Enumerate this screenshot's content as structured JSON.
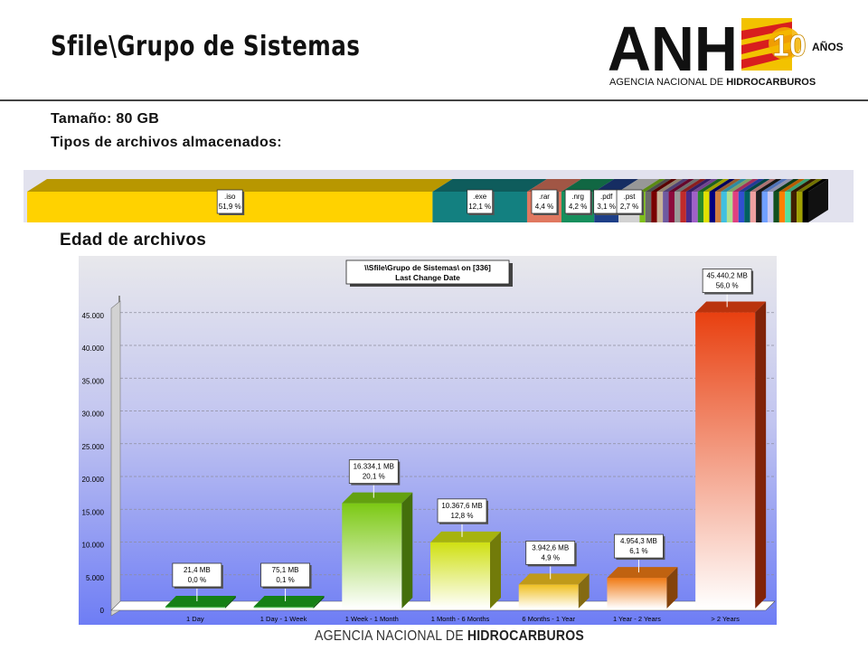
{
  "header": {
    "title": "Sfile\\Grupo de Sistemas",
    "logo": {
      "letters": "ANH",
      "badge": "10",
      "badge_suffix": "AÑOS",
      "subtitle_plain": "AGENCIA NACIONAL DE ",
      "subtitle_bold": "HIDROCARBUROS"
    }
  },
  "info": {
    "size_line": "Tamaño: 80 GB",
    "types_line": "Tipos de archivos almacenados:"
  },
  "file_types": {
    "segments": [
      {
        "ext": ".iso",
        "pct": 51.9,
        "label": "51,9 %",
        "color": "#ffd200"
      },
      {
        "ext": ".exe",
        "pct": 12.1,
        "label": "12,1 %",
        "color": "#138080"
      },
      {
        "ext": ".rar",
        "pct": 4.4,
        "label": "4,4 %",
        "color": "#e07860"
      },
      {
        "ext": ".nrg",
        "pct": 4.2,
        "label": "4,2 %",
        "color": "#178f5d"
      },
      {
        "ext": ".pdf",
        "pct": 3.1,
        "label": "3,1 %",
        "color": "#1e3f88"
      },
      {
        "ext": ".pst",
        "pct": 2.7,
        "label": "2,7 %",
        "color": "#d2d2d2"
      }
    ],
    "other_colors": [
      "#7fc01a",
      "#6a6a6a",
      "#7a0000",
      "#c8b49a",
      "#6e5aa0",
      "#8c0a3c",
      "#9a9a9a",
      "#c02a2a",
      "#4a2a8a",
      "#a060c8",
      "#2a8a2a",
      "#e0e000",
      "#000080",
      "#d08040",
      "#40c0e0",
      "#b0e090",
      "#e04080",
      "#3050d0",
      "#006060",
      "#f0a0a0",
      "#202020",
      "#70a0ff",
      "#c8c8f0",
      "#105020",
      "#ff8000",
      "#50e0a0",
      "#402000",
      "#a0a000",
      "#000000"
    ]
  },
  "age_section": {
    "heading": "Edad de archivos"
  },
  "chart_data": {
    "type": "bar",
    "title": "\\\\Sfile\\Grupo de Sistemas\\  on  [336]",
    "subtitle": "Last Change Date",
    "categories": [
      "1 Day",
      "1 Day - 1 Week",
      "1 Week - 1 Month",
      "1 Month - 6 Months",
      "6 Months - 1 Year",
      "1 Year - 2 Years",
      "> 2 Years"
    ],
    "values": [
      21.4,
      75.1,
      16334.1,
      10367.6,
      3942.6,
      4954.3,
      45440.2
    ],
    "value_labels": [
      "21,4 MB",
      "75,1 MB",
      "16.334,1 MB",
      "10.367,6 MB",
      "3.942,6 MB",
      "4.954,3 MB",
      "45.440,2 MB"
    ],
    "percent_labels": [
      "0,0 %",
      "0,1 %",
      "20,1 %",
      "12,8 %",
      "4,9 %",
      "6,1 %",
      "56,0 %"
    ],
    "bar_colors": [
      "#1aa01a",
      "#1aa01a",
      "#7cc914",
      "#cfe012",
      "#f0c020",
      "#f07a14",
      "#e84010"
    ],
    "yticks": [
      0,
      5000,
      10000,
      15000,
      20000,
      25000,
      30000,
      35000,
      40000,
      45000
    ],
    "ytick_labels": [
      "0",
      "5.000",
      "10.000",
      "15.000",
      "20.000",
      "25.000",
      "30.000",
      "35.000",
      "40.000",
      "45.000"
    ],
    "ylim": [
      0,
      48000
    ],
    "grid": true,
    "legend": "none"
  },
  "footer": {
    "plain": "AGENCIA NACIONAL DE ",
    "bold": "HIDROCARBUROS"
  }
}
